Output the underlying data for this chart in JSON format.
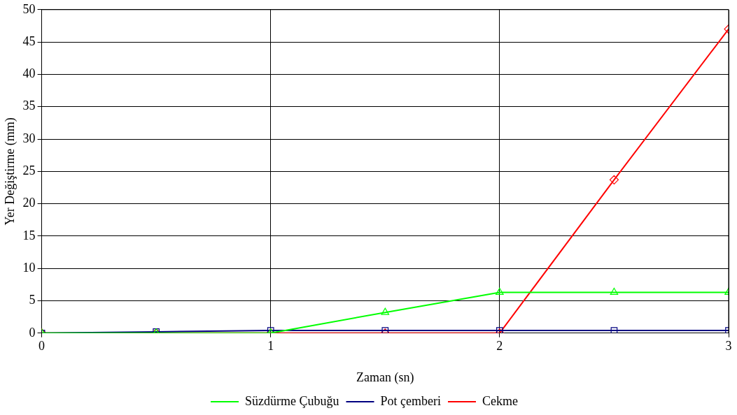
{
  "chart_data": {
    "type": "line",
    "xlabel": "Zaman (sn)",
    "ylabel": "Yer Değiştirme (mm)",
    "x": [
      0,
      0.5,
      1,
      1.5,
      2,
      2.5,
      3
    ],
    "xlim": [
      0,
      3
    ],
    "xticks": [
      0,
      1,
      2,
      3
    ],
    "ylim": [
      0,
      50
    ],
    "yticks": [
      0,
      5,
      10,
      15,
      20,
      25,
      30,
      35,
      40,
      45,
      50
    ],
    "grid": true,
    "legend": "bottom",
    "line_style": "solid",
    "series": [
      {
        "name": "Süzdürme Çubuğu",
        "color": "#00ff00",
        "marker": "triangle",
        "values": [
          0,
          0,
          0,
          3.2,
          6.3,
          6.3,
          6.3
        ]
      },
      {
        "name": "Pot çemberi",
        "color": "#000080",
        "marker": "square",
        "values": [
          0,
          0.2,
          0.4,
          0.4,
          0.4,
          0.4,
          0.4
        ]
      },
      {
        "name": "Cekme",
        "color": "#ff0000",
        "marker": "diamond",
        "values": [
          0,
          0,
          0,
          0,
          0,
          23.7,
          47
        ]
      }
    ]
  }
}
